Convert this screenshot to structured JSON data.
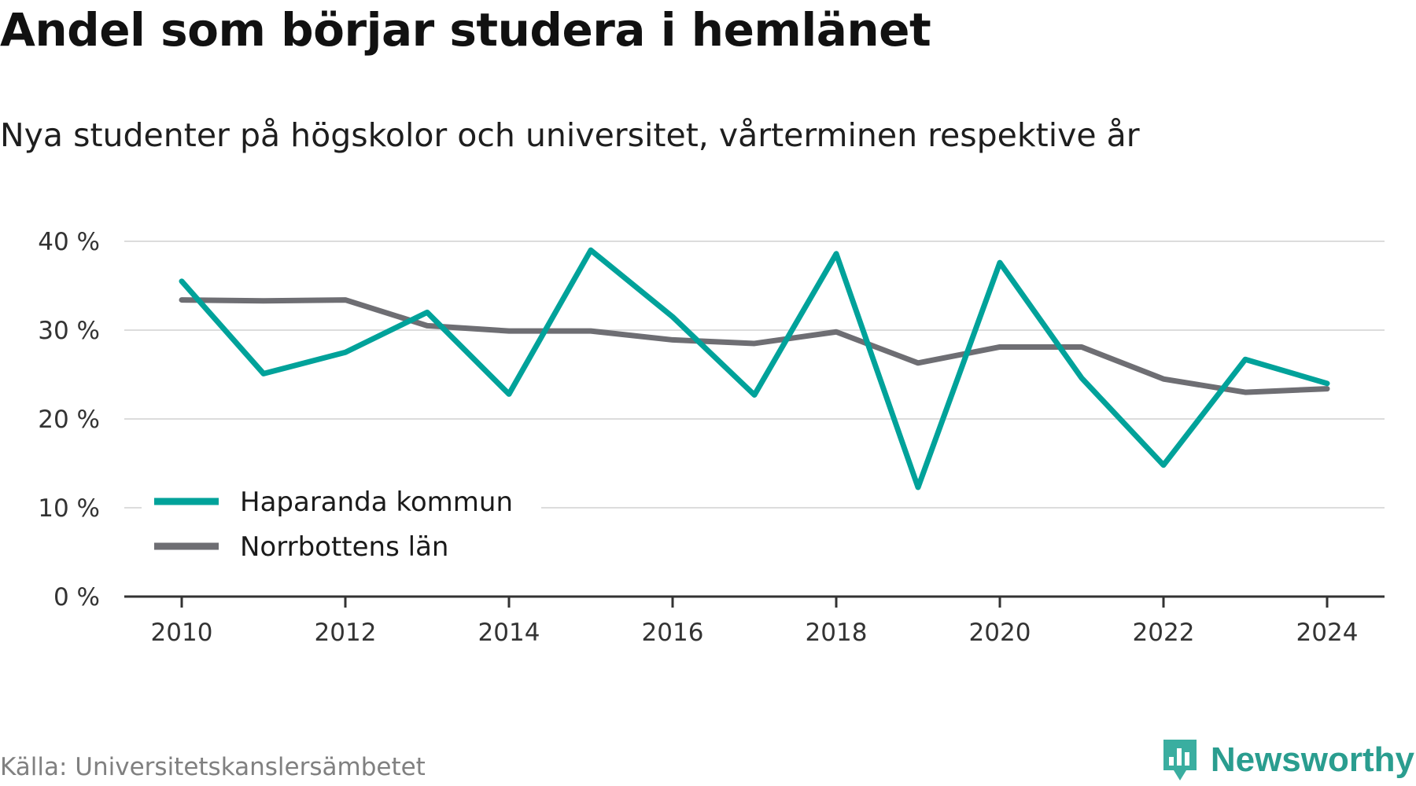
{
  "title": "Andel som börjar studera i hemlänet",
  "subtitle": "Nya studenter på högskolor och universitet, vårterminen respektive år",
  "source": "Källa: Universitetskanslersämbetet",
  "brand": {
    "name": "Newsworthy",
    "logo_icon": "bar-chart-icon",
    "color": "#2a9d8f"
  },
  "chart_data": {
    "type": "line",
    "x": [
      2010,
      2011,
      2012,
      2013,
      2014,
      2015,
      2016,
      2017,
      2018,
      2019,
      2020,
      2021,
      2022,
      2023,
      2024
    ],
    "series": [
      {
        "name": "Haparanda kommun",
        "color": "#00a29a",
        "values": [
          35.5,
          25.1,
          27.5,
          32.0,
          22.8,
          39.0,
          31.5,
          22.7,
          38.6,
          12.3,
          37.6,
          24.6,
          14.8,
          26.7,
          24.0
        ]
      },
      {
        "name": "Norrbottens län",
        "color": "#6e6e73",
        "values": [
          33.4,
          33.3,
          33.4,
          30.5,
          29.9,
          29.9,
          28.9,
          28.5,
          29.8,
          26.3,
          28.1,
          28.1,
          24.5,
          23.0,
          23.4
        ]
      }
    ],
    "x_ticks": [
      "2010",
      "2012",
      "2014",
      "2016",
      "2018",
      "2020",
      "2022",
      "2024"
    ],
    "y_ticks": [
      {
        "value": 0,
        "label": "0 %"
      },
      {
        "value": 10,
        "label": "10 %"
      },
      {
        "value": 20,
        "label": "20 %"
      },
      {
        "value": 30,
        "label": "30 %"
      },
      {
        "value": 40,
        "label": "40 %"
      }
    ],
    "ylim": [
      0,
      40
    ],
    "grid": true,
    "legend": "bottom-left"
  }
}
